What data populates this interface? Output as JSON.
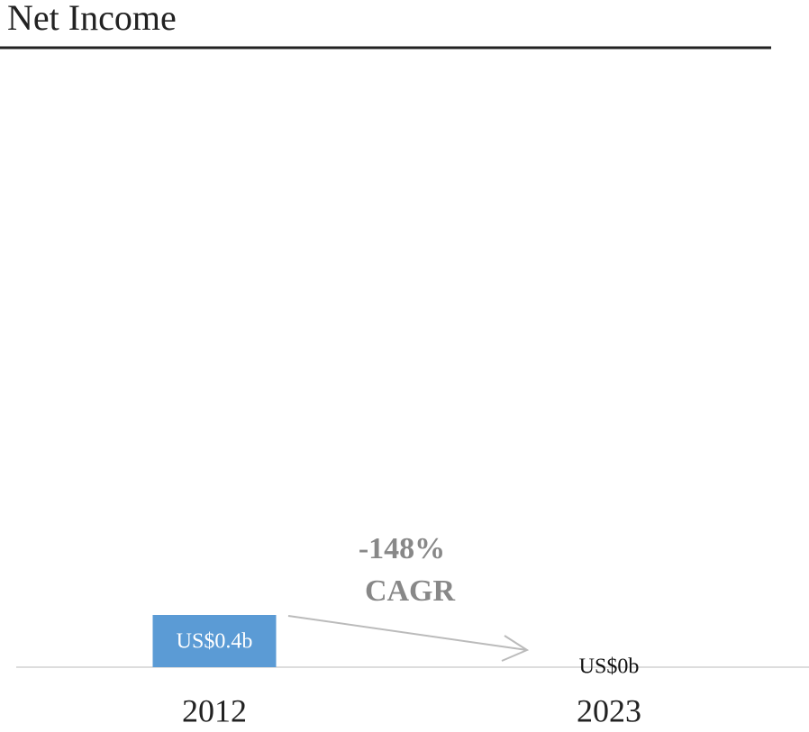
{
  "chart_data": {
    "type": "bar",
    "title": "Net Income",
    "categories": [
      "2012",
      "2023"
    ],
    "values": [
      0.4,
      0
    ],
    "value_labels": [
      "US$0.4b",
      "US$0b"
    ],
    "color": "#5b9bd5",
    "annotation": [
      "-148%",
      "CAGR"
    ]
  }
}
